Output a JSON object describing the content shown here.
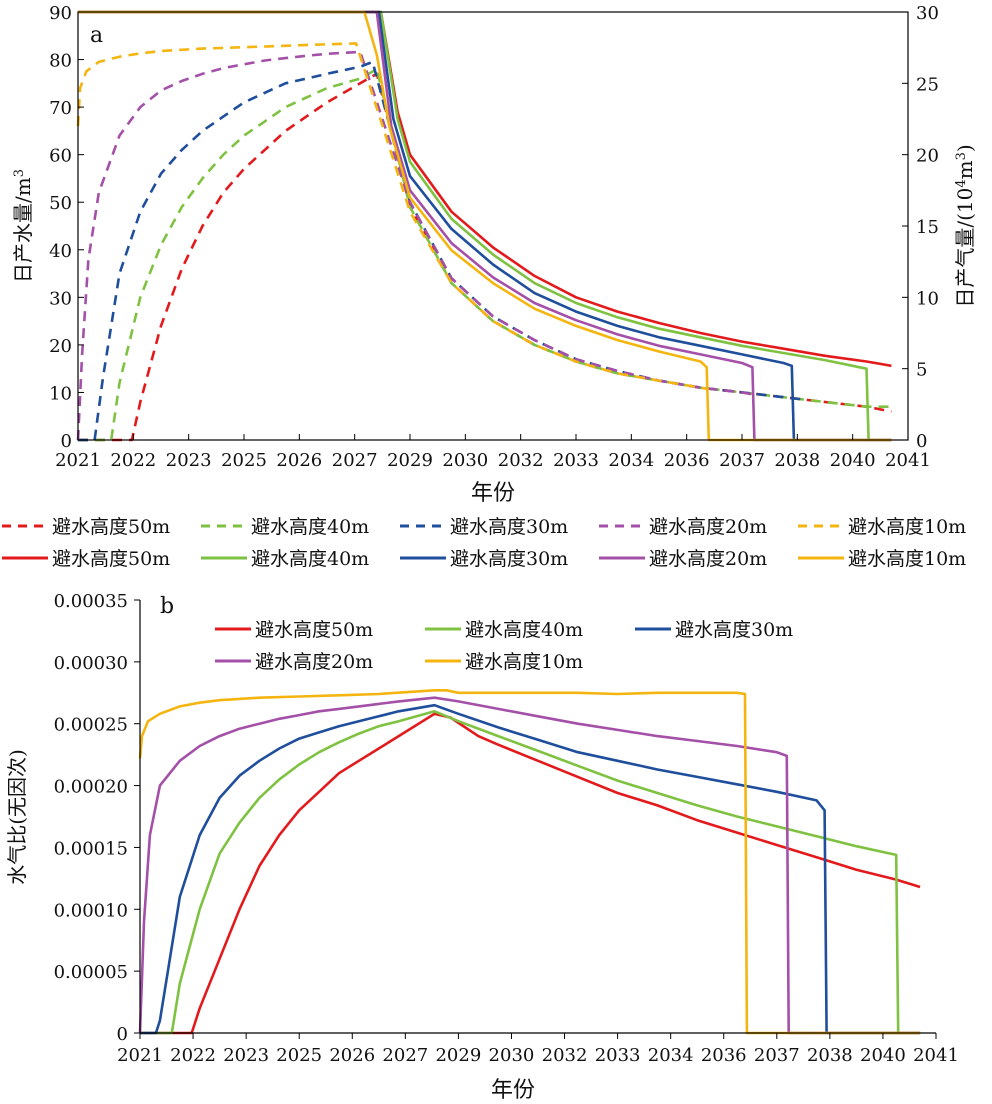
{
  "chart_data": [
    {
      "panel_label": "a",
      "type": "line",
      "xlabel": "年份",
      "ylabel_left": "日产水量/m",
      "ylabel_left_sup": "3",
      "ylabel_right": "日产气量/(10",
      "ylabel_right_sup1": "4",
      "ylabel_right_mid": "m",
      "ylabel_right_sup2": "3",
      "ylabel_right_end": ")",
      "xlim": [
        2021,
        2041
      ],
      "ylim_left": [
        0,
        90
      ],
      "ylim_right": [
        0,
        30
      ],
      "xtick_labels": [
        "2021",
        "2022",
        "2023",
        "2025",
        "2026",
        "2027",
        "2029",
        "2030",
        "2032",
        "2033",
        "2034",
        "2036",
        "2037",
        "2038",
        "2040",
        "2041"
      ],
      "ytick_labels_left": [
        "0",
        "10",
        "20",
        "30",
        "40",
        "50",
        "60",
        "70",
        "80",
        "90"
      ],
      "ytick_labels_right": [
        "0",
        "5",
        "10",
        "15",
        "20",
        "25",
        "30"
      ],
      "legend_position": "below",
      "legend": [
        {
          "label": "避水高度50m",
          "color": "#e31a1c",
          "dash": true
        },
        {
          "label": "避水高度40m",
          "color": "#7fc241",
          "dash": true
        },
        {
          "label": "避水高度30m",
          "color": "#1f4e9c",
          "dash": true
        },
        {
          "label": "避水高度20m",
          "color": "#a450a8",
          "dash": true
        },
        {
          "label": "避水高度10m",
          "color": "#f4b511",
          "dash": true
        },
        {
          "label": "避水高度50m",
          "color": "#e31a1c",
          "dash": false
        },
        {
          "label": "避水高度40m",
          "color": "#7fc241",
          "dash": false
        },
        {
          "label": "避水高度30m",
          "color": "#1f4e9c",
          "dash": false
        },
        {
          "label": "避水高度20m",
          "color": "#a450a8",
          "dash": false
        },
        {
          "label": "避水高度10m",
          "color": "#f4b511",
          "dash": false
        }
      ],
      "series": [
        {
          "label": "避水高度50m",
          "kind": "water",
          "axis": "left",
          "color": "#e31a1c",
          "x": [
            2021,
            2022.3,
            2022.5,
            2023.0,
            2023.5,
            2024.0,
            2024.5,
            2025.0,
            2025.5,
            2026.0,
            2026.5,
            2027.0,
            2027.8,
            2028.2,
            2029.0,
            2030.0,
            2031.0,
            2032.0,
            2033.0,
            2034.0,
            2035.0,
            2036.0,
            2037.0,
            2038.0,
            2039.0,
            2040.0,
            2040.6
          ],
          "y": [
            0,
            0,
            8,
            24,
            36,
            45,
            52,
            57,
            61,
            65,
            68,
            71,
            75,
            77,
            49,
            33,
            25,
            20,
            16.5,
            14,
            12.5,
            11,
            10,
            9,
            8,
            7,
            6
          ]
        },
        {
          "label": "避水高度40m",
          "kind": "water",
          "axis": "left",
          "color": "#7fc241",
          "x": [
            2021,
            2021.8,
            2022.0,
            2022.5,
            2023.0,
            2023.5,
            2024.0,
            2024.5,
            2025.0,
            2025.5,
            2026.0,
            2026.5,
            2027.0,
            2027.8,
            2028.2,
            2029.0,
            2030.0,
            2031.0,
            2032.0,
            2033.0,
            2034.0,
            2035.0,
            2036.0,
            2037.0,
            2038.0,
            2039.0,
            2040.0,
            2040.6
          ],
          "y": [
            0,
            0,
            12,
            30,
            41,
            49,
            55,
            60,
            64,
            67,
            70,
            72,
            74,
            76,
            78,
            49,
            33,
            25,
            20,
            16.5,
            14,
            12.5,
            11,
            10,
            9,
            8,
            7,
            7
          ]
        },
        {
          "label": "避水高度30m",
          "kind": "water",
          "axis": "left",
          "color": "#1f4e9c",
          "x": [
            2021,
            2021.4,
            2021.6,
            2022.0,
            2022.5,
            2023.0,
            2023.5,
            2024.0,
            2024.5,
            2025.0,
            2025.5,
            2026.0,
            2026.5,
            2027.0,
            2027.8,
            2028.1,
            2029.0,
            2030.0,
            2031.0,
            2032.0,
            2033.0,
            2034.0,
            2035.0,
            2036.0,
            2037.0,
            2038.0,
            2038.5
          ],
          "y": [
            0,
            0,
            13,
            35,
            48,
            56,
            61,
            65,
            68,
            71,
            73,
            75,
            76,
            77,
            78.5,
            79.5,
            50,
            34,
            26,
            21,
            17,
            14.5,
            12.5,
            11,
            10,
            9,
            8.5
          ]
        },
        {
          "label": "避水高度20m",
          "kind": "water",
          "axis": "left",
          "color": "#a450a8",
          "x": [
            2021,
            2021.1,
            2021.25,
            2021.5,
            2022.0,
            2022.5,
            2023.0,
            2023.5,
            2024.0,
            2024.5,
            2025.0,
            2025.5,
            2026.0,
            2026.5,
            2027.0,
            2027.8,
            2029.0,
            2030.0,
            2031.0,
            2032.0,
            2033.0,
            2034.0,
            2035.0,
            2036.0,
            2037.0,
            2037.3
          ],
          "y": [
            0,
            18,
            38,
            52,
            64,
            70,
            73.5,
            75.5,
            77,
            78.2,
            79,
            79.8,
            80.3,
            80.8,
            81.2,
            81.6,
            50,
            34,
            26,
            21,
            17,
            14.5,
            12.5,
            11,
            10,
            9.5
          ]
        },
        {
          "label": "避水高度10m",
          "kind": "water",
          "axis": "left",
          "color": "#f4b511",
          "x": [
            2021,
            2021.05,
            2021.2,
            2021.5,
            2022.0,
            2022.5,
            2023.0,
            2024.0,
            2025.0,
            2026.0,
            2027.0,
            2027.7,
            2029.0,
            2030.0,
            2031.0,
            2032.0,
            2033.0,
            2034.0,
            2035.0,
            2036.0,
            2036.2
          ],
          "y": [
            66,
            74,
            77.5,
            79.5,
            80.6,
            81.3,
            81.8,
            82.3,
            82.6,
            82.9,
            83.2,
            83.4,
            48,
            33,
            25,
            20,
            16.5,
            14,
            12.5,
            11,
            10.7
          ]
        },
        {
          "label": "避水高度50m",
          "kind": "gas",
          "axis": "right",
          "color": "#e31a1c",
          "x": [
            2021,
            2028.3,
            2028.7,
            2029.0,
            2030.0,
            2031.0,
            2032.0,
            2033.0,
            2034.0,
            2035.0,
            2036.0,
            2037.0,
            2038.0,
            2039.0,
            2040.0,
            2040.6
          ],
          "y": [
            30,
            30,
            23,
            20,
            16,
            13.5,
            11.5,
            10,
            9,
            8.2,
            7.5,
            6.9,
            6.4,
            5.9,
            5.5,
            5.2
          ]
        },
        {
          "label": "避水高度40m",
          "kind": "gas",
          "axis": "right",
          "color": "#7fc241",
          "x": [
            2021,
            2028.3,
            2028.7,
            2029.0,
            2030.0,
            2031.0,
            2032.0,
            2033.0,
            2034.0,
            2035.0,
            2036.0,
            2037.0,
            2038.0,
            2039.0,
            2040.0,
            2040.05,
            2040.6
          ],
          "y": [
            30,
            30,
            22.5,
            19.5,
            15.5,
            13,
            11,
            9.6,
            8.6,
            7.8,
            7.2,
            6.6,
            6.1,
            5.6,
            5.0,
            0,
            0
          ]
        },
        {
          "label": "避水高度30m",
          "kind": "gas",
          "axis": "right",
          "color": "#1f4e9c",
          "x": [
            2021,
            2028.25,
            2028.6,
            2029.0,
            2030.0,
            2031.0,
            2032.0,
            2033.0,
            2034.0,
            2035.0,
            2036.0,
            2037.0,
            2038.0,
            2038.2,
            2038.25,
            2040.6
          ],
          "y": [
            30,
            30,
            22.5,
            18.5,
            14.8,
            12.3,
            10.3,
            9.0,
            8.0,
            7.2,
            6.6,
            6.0,
            5.4,
            5.2,
            0,
            0
          ]
        },
        {
          "label": "避水高度20m",
          "kind": "gas",
          "axis": "right",
          "color": "#a450a8",
          "x": [
            2021,
            2028.2,
            2028.55,
            2029.0,
            2030.0,
            2031.0,
            2032.0,
            2033.0,
            2034.0,
            2035.0,
            2036.0,
            2037.0,
            2037.25,
            2037.3,
            2040.6
          ],
          "y": [
            30,
            30,
            22,
            17.5,
            13.8,
            11.4,
            9.6,
            8.4,
            7.4,
            6.6,
            6.0,
            5.4,
            5.1,
            0,
            0
          ]
        },
        {
          "label": "避水高度10m",
          "kind": "gas",
          "axis": "right",
          "color": "#f4b511",
          "x": [
            2021,
            2027.9,
            2028.2,
            2028.5,
            2029.0,
            2030.0,
            2031.0,
            2032.0,
            2033.0,
            2034.0,
            2035.0,
            2036.0,
            2036.15,
            2036.2,
            2040.6
          ],
          "y": [
            30,
            30,
            27,
            22,
            17,
            13.3,
            11,
            9.2,
            8.0,
            7.0,
            6.2,
            5.5,
            5.1,
            0,
            0
          ]
        }
      ]
    },
    {
      "panel_label": "b",
      "type": "line",
      "xlabel": "年份",
      "ylabel": "水气比(无因次)",
      "xlim": [
        2021,
        2041
      ],
      "ylim": [
        0,
        0.00035
      ],
      "xtick_labels": [
        "2021",
        "2022",
        "2023",
        "2025",
        "2026",
        "2027",
        "2029",
        "2030",
        "2032",
        "2033",
        "2034",
        "2036",
        "2037",
        "2038",
        "2040",
        "2041"
      ],
      "ytick_labels": [
        "0",
        "0.00005",
        "0.00010",
        "0.00015",
        "0.00020",
        "0.00025",
        "0.00030",
        "0.00035"
      ],
      "legend_position": "top",
      "series": [
        {
          "name": "避水高度50m",
          "color": "#e31a1c",
          "x": [
            2021,
            2022.3,
            2022.5,
            2023.0,
            2023.5,
            2024.0,
            2024.5,
            2025.0,
            2025.5,
            2026.0,
            2026.5,
            2027.0,
            2027.5,
            2028.4,
            2028.8,
            2029.5,
            2030.0,
            2031.0,
            2032.0,
            2033.0,
            2034.0,
            2035.0,
            2036.0,
            2037.0,
            2038.0,
            2039.0,
            2040.0,
            2040.6
          ],
          "y": [
            0,
            0,
            2e-05,
            6e-05,
            0.0001,
            0.000135,
            0.00016,
            0.00018,
            0.000195,
            0.00021,
            0.00022,
            0.00023,
            0.00024,
            0.000258,
            0.000255,
            0.00024,
            0.000233,
            0.00022,
            0.000207,
            0.000194,
            0.000184,
            0.000172,
            0.000162,
            0.000152,
            0.000142,
            0.000132,
            0.000124,
            0.000118
          ]
        },
        {
          "name": "避水高度40m",
          "color": "#7fc241",
          "x": [
            2021,
            2021.8,
            2022.0,
            2022.5,
            2023.0,
            2023.5,
            2024.0,
            2024.5,
            2025.0,
            2025.5,
            2026.0,
            2026.5,
            2027.0,
            2027.5,
            2028.4,
            2029.0,
            2030.0,
            2031.0,
            2032.0,
            2033.0,
            2034.0,
            2035.0,
            2036.0,
            2037.0,
            2038.0,
            2039.0,
            2040.0,
            2040.05,
            2040.6
          ],
          "y": [
            0,
            0,
            4e-05,
            0.0001,
            0.000145,
            0.00017,
            0.00019,
            0.000205,
            0.000217,
            0.000227,
            0.000235,
            0.000242,
            0.000248,
            0.000252,
            0.00026,
            0.000252,
            0.00024,
            0.000228,
            0.000216,
            0.000204,
            0.000194,
            0.000184,
            0.000175,
            0.000167,
            0.000159,
            0.000151,
            0.000144,
            0,
            0
          ]
        },
        {
          "name": "避水高度30m",
          "color": "#1f4e9c",
          "x": [
            2021,
            2021.4,
            2021.5,
            2021.7,
            2022.0,
            2022.5,
            2023.0,
            2023.5,
            2024.0,
            2024.5,
            2025.0,
            2025.5,
            2026.0,
            2026.5,
            2027.0,
            2027.5,
            2028.4,
            2029.0,
            2030.0,
            2031.0,
            2032.0,
            2033.0,
            2034.0,
            2035.0,
            2036.0,
            2037.0,
            2038.0,
            2038.2,
            2038.25,
            2040.6
          ],
          "y": [
            0,
            0,
            1e-05,
            5e-05,
            0.00011,
            0.00016,
            0.00019,
            0.000208,
            0.00022,
            0.00023,
            0.000238,
            0.000243,
            0.000248,
            0.000252,
            0.000256,
            0.00026,
            0.000265,
            0.000258,
            0.000247,
            0.000237,
            0.000227,
            0.00022,
            0.000213,
            0.000207,
            0.000201,
            0.000195,
            0.000188,
            0.00018,
            0,
            0
          ]
        },
        {
          "name": "避水高度20m",
          "color": "#a450a8",
          "x": [
            2021,
            2021.1,
            2021.25,
            2021.5,
            2022.0,
            2022.5,
            2023.0,
            2023.5,
            2024.0,
            2024.5,
            2025.0,
            2025.5,
            2026.0,
            2026.5,
            2027.0,
            2027.5,
            2028.4,
            2029.0,
            2030.0,
            2031.0,
            2032.0,
            2033.0,
            2034.0,
            2035.0,
            2036.0,
            2037.0,
            2037.25,
            2037.3,
            2040.6
          ],
          "y": [
            0,
            9e-05,
            0.00016,
            0.0002,
            0.00022,
            0.000232,
            0.00024,
            0.000246,
            0.00025,
            0.000254,
            0.000257,
            0.00026,
            0.000262,
            0.000264,
            0.000266,
            0.000268,
            0.000271,
            0.000268,
            0.000262,
            0.000256,
            0.00025,
            0.000245,
            0.00024,
            0.000236,
            0.000232,
            0.000227,
            0.000224,
            0,
            0
          ]
        },
        {
          "name": "避水高度10m",
          "color": "#f4b511",
          "x": [
            2021,
            2021.05,
            2021.2,
            2021.5,
            2022.0,
            2022.5,
            2023.0,
            2024.0,
            2025.0,
            2026.0,
            2027.0,
            2028.4,
            2028.7,
            2029.0,
            2030.0,
            2031.0,
            2032.0,
            2033.0,
            2034.0,
            2035.0,
            2036.0,
            2036.2,
            2036.25,
            2040.6
          ],
          "y": [
            0.000222,
            0.00024,
            0.000252,
            0.000258,
            0.000264,
            0.000267,
            0.000269,
            0.000271,
            0.000272,
            0.000273,
            0.000274,
            0.000277,
            0.000277,
            0.000275,
            0.000275,
            0.000275,
            0.000275,
            0.000274,
            0.000275,
            0.000275,
            0.000275,
            0.000274,
            0,
            0
          ]
        }
      ]
    }
  ]
}
